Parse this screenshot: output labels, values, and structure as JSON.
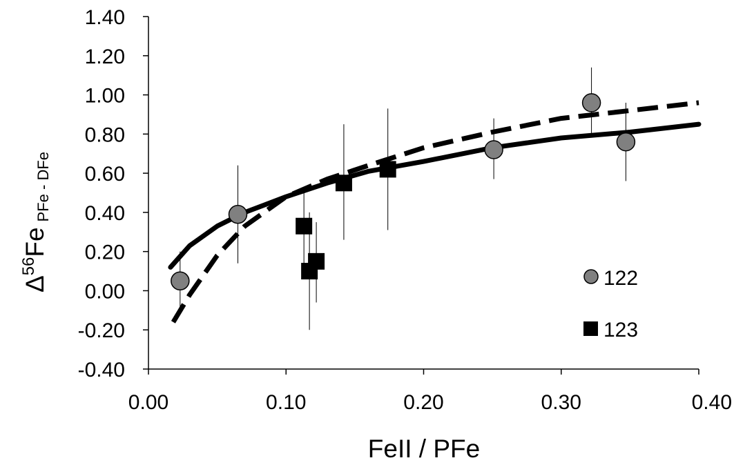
{
  "chart_data": {
    "type": "scatter",
    "xlabel": "FeII / PFe",
    "ylabel": {
      "main": "Δ",
      "sup": "56",
      "base": "Fe",
      "sub": "PFe - DFe"
    },
    "xlim": [
      0,
      0.4
    ],
    "ylim": [
      -0.4,
      1.4
    ],
    "xticks": [
      "0.00",
      "0.10",
      "0.20",
      "0.30",
      "0.40"
    ],
    "xtick_values": [
      0,
      0.1,
      0.2,
      0.3,
      0.4
    ],
    "yticks": [
      "-0.40",
      "-0.20",
      "0.00",
      "0.20",
      "0.40",
      "0.60",
      "0.80",
      "1.00",
      "1.20",
      "1.40"
    ],
    "ytick_values": [
      -0.4,
      -0.2,
      0,
      0.2,
      0.4,
      0.6,
      0.8,
      1.0,
      1.2,
      1.4
    ],
    "grid": false,
    "legend": "bottom-right",
    "series": [
      {
        "name": "122",
        "marker": "circle",
        "color": "#808080",
        "points": [
          {
            "x": 0.023,
            "y": 0.05,
            "ylo": -0.09,
            "yhi": 0.2
          },
          {
            "x": 0.065,
            "y": 0.39,
            "ylo": 0.14,
            "yhi": 0.64
          },
          {
            "x": 0.251,
            "y": 0.72,
            "ylo": 0.57,
            "yhi": 0.88
          },
          {
            "x": 0.322,
            "y": 0.96,
            "ylo": 0.79,
            "yhi": 1.14
          },
          {
            "x": 0.347,
            "y": 0.76,
            "ylo": 0.56,
            "yhi": 0.96
          }
        ]
      },
      {
        "name": "123",
        "marker": "square",
        "color": "#000000",
        "points": [
          {
            "x": 0.113,
            "y": 0.33,
            "ylo": 0.14,
            "yhi": 0.53
          },
          {
            "x": 0.117,
            "y": 0.1,
            "ylo": -0.2,
            "yhi": 0.4
          },
          {
            "x": 0.122,
            "y": 0.15,
            "ylo": -0.06,
            "yhi": 0.35
          },
          {
            "x": 0.142,
            "y": 0.55,
            "ylo": 0.26,
            "yhi": 0.85
          },
          {
            "x": 0.174,
            "y": 0.62,
            "ylo": 0.31,
            "yhi": 0.93
          }
        ]
      }
    ],
    "curves": [
      {
        "style": "solid",
        "x": [
          0.016,
          0.03,
          0.05,
          0.07,
          0.1,
          0.13,
          0.16,
          0.2,
          0.25,
          0.3,
          0.35,
          0.4
        ],
        "y": [
          0.12,
          0.23,
          0.33,
          0.4,
          0.48,
          0.55,
          0.61,
          0.66,
          0.73,
          0.78,
          0.81,
          0.85
        ]
      },
      {
        "style": "dashed",
        "x": [
          0.018,
          0.03,
          0.05,
          0.07,
          0.1,
          0.13,
          0.16,
          0.2,
          0.25,
          0.3,
          0.35,
          0.4
        ],
        "y": [
          -0.16,
          -0.02,
          0.18,
          0.33,
          0.48,
          0.57,
          0.64,
          0.73,
          0.81,
          0.88,
          0.92,
          0.96
        ]
      }
    ]
  }
}
